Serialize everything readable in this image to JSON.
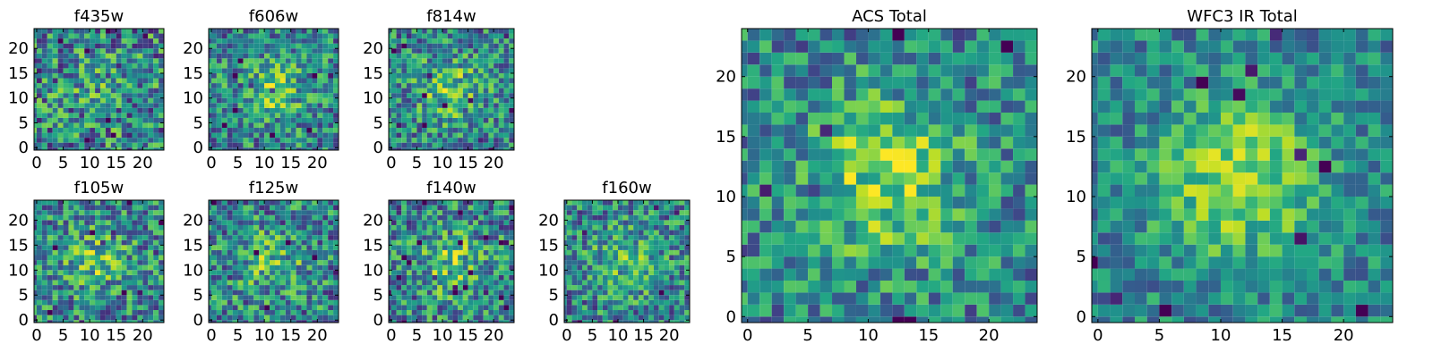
{
  "chart_data": [
    {
      "type": "heatmap",
      "title": "f435w",
      "grid_size": 25,
      "x_ticks": [
        0,
        5,
        10,
        15,
        20
      ],
      "y_ticks": [
        0,
        5,
        10,
        15,
        20
      ],
      "xlim": [
        0,
        24
      ],
      "ylim": [
        0,
        24
      ],
      "colormap": "viridis",
      "signal": 0.2,
      "noise": 1.0,
      "seed": 11
    },
    {
      "type": "heatmap",
      "title": "f606w",
      "grid_size": 25,
      "x_ticks": [
        0,
        5,
        10,
        15,
        20
      ],
      "y_ticks": [
        0,
        5,
        10,
        15,
        20
      ],
      "xlim": [
        0,
        24
      ],
      "ylim": [
        0,
        24
      ],
      "colormap": "viridis",
      "signal": 0.55,
      "noise": 0.85,
      "seed": 23
    },
    {
      "type": "heatmap",
      "title": "f814w",
      "grid_size": 25,
      "x_ticks": [
        0,
        5,
        10,
        15,
        20
      ],
      "y_ticks": [
        0,
        5,
        10,
        15,
        20
      ],
      "xlim": [
        0,
        24
      ],
      "ylim": [
        0,
        24
      ],
      "colormap": "viridis",
      "signal": 0.55,
      "noise": 0.85,
      "seed": 37
    },
    {
      "type": "heatmap",
      "title": "f105w",
      "grid_size": 25,
      "x_ticks": [
        0,
        5,
        10,
        15,
        20
      ],
      "y_ticks": [
        0,
        5,
        10,
        15,
        20
      ],
      "xlim": [
        0,
        24
      ],
      "ylim": [
        0,
        24
      ],
      "colormap": "viridis",
      "signal": 0.45,
      "noise": 0.9,
      "seed": 41
    },
    {
      "type": "heatmap",
      "title": "f125w",
      "grid_size": 25,
      "x_ticks": [
        0,
        5,
        10,
        15,
        20
      ],
      "y_ticks": [
        0,
        5,
        10,
        15,
        20
      ],
      "xlim": [
        0,
        24
      ],
      "ylim": [
        0,
        24
      ],
      "colormap": "viridis",
      "signal": 0.45,
      "noise": 0.9,
      "seed": 53
    },
    {
      "type": "heatmap",
      "title": "f140w",
      "grid_size": 25,
      "x_ticks": [
        0,
        5,
        10,
        15,
        20
      ],
      "y_ticks": [
        0,
        5,
        10,
        15,
        20
      ],
      "xlim": [
        0,
        24
      ],
      "ylim": [
        0,
        24
      ],
      "colormap": "viridis",
      "signal": 0.5,
      "noise": 0.9,
      "seed": 67
    },
    {
      "type": "heatmap",
      "title": "f160w",
      "grid_size": 25,
      "x_ticks": [
        0,
        5,
        10,
        15,
        20
      ],
      "y_ticks": [
        0,
        5,
        10,
        15,
        20
      ],
      "xlim": [
        0,
        24
      ],
      "ylim": [
        0,
        24
      ],
      "colormap": "viridis",
      "signal": 0.5,
      "noise": 0.85,
      "seed": 79
    },
    {
      "type": "heatmap",
      "title": "ACS Total",
      "grid_size": 25,
      "x_ticks": [
        0,
        5,
        10,
        15,
        20
      ],
      "y_ticks": [
        0,
        5,
        10,
        15,
        20
      ],
      "xlim": [
        0,
        24
      ],
      "ylim": [
        0,
        24
      ],
      "colormap": "viridis",
      "signal": 0.75,
      "noise": 0.75,
      "seed": 97
    },
    {
      "type": "heatmap",
      "title": "WFC3 IR Total",
      "grid_size": 25,
      "x_ticks": [
        0,
        5,
        10,
        15,
        20
      ],
      "y_ticks": [
        0,
        5,
        10,
        15,
        20
      ],
      "xlim": [
        0,
        24
      ],
      "ylim": [
        0,
        24
      ],
      "colormap": "viridis",
      "signal": 0.85,
      "noise": 0.6,
      "seed": 113
    }
  ]
}
